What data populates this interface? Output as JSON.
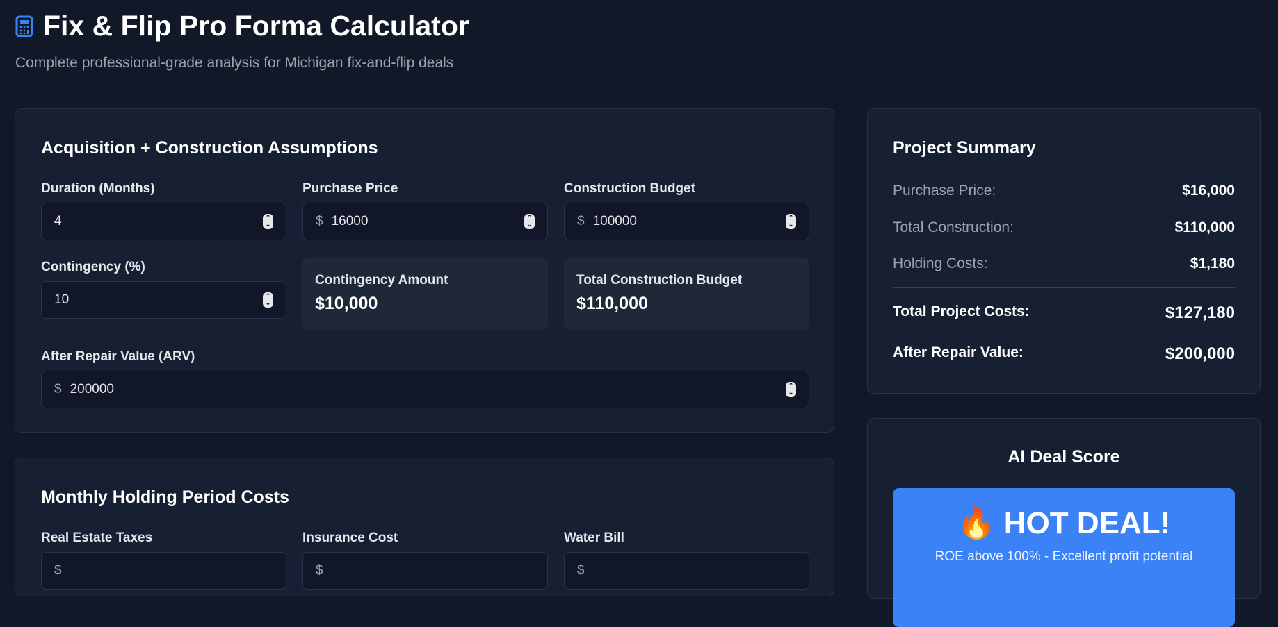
{
  "header": {
    "title": "Fix & Flip Pro Forma Calculator",
    "subtitle": "Complete professional-grade analysis for Michigan fix-and-flip deals",
    "icon": "calculator-icon"
  },
  "acquisition": {
    "heading": "Acquisition + Construction Assumptions",
    "duration": {
      "label": "Duration (Months)",
      "value": "4"
    },
    "purchase_price": {
      "label": "Purchase Price",
      "prefix": "$",
      "value": "16000"
    },
    "construction_budget": {
      "label": "Construction Budget",
      "prefix": "$",
      "value": "100000"
    },
    "contingency": {
      "label": "Contingency (%)",
      "value": "10"
    },
    "contingency_amount": {
      "label": "Contingency Amount",
      "value": "$10,000"
    },
    "total_construction": {
      "label": "Total Construction Budget",
      "value": "$110,000"
    },
    "arv": {
      "label": "After Repair Value (ARV)",
      "prefix": "$",
      "value": "200000"
    }
  },
  "holding": {
    "heading": "Monthly Holding Period Costs",
    "taxes": {
      "label": "Real Estate Taxes",
      "prefix": "$"
    },
    "insurance": {
      "label": "Insurance Cost",
      "prefix": "$"
    },
    "water": {
      "label": "Water Bill",
      "prefix": "$"
    }
  },
  "summary": {
    "heading": "Project Summary",
    "rows": [
      {
        "label": "Purchase Price:",
        "value": "$16,000"
      },
      {
        "label": "Total Construction:",
        "value": "$110,000"
      },
      {
        "label": "Holding Costs:",
        "value": "$1,180"
      },
      {
        "label": "Total Project Costs:",
        "value": "$127,180"
      },
      {
        "label": "After Repair Value:",
        "value": "$200,000"
      }
    ]
  },
  "deal_score": {
    "heading": "AI Deal Score",
    "emoji": "🔥",
    "verdict": "HOT DEAL!",
    "note": "ROE above 100% - Excellent profit potential",
    "color": "#3b82f6"
  }
}
